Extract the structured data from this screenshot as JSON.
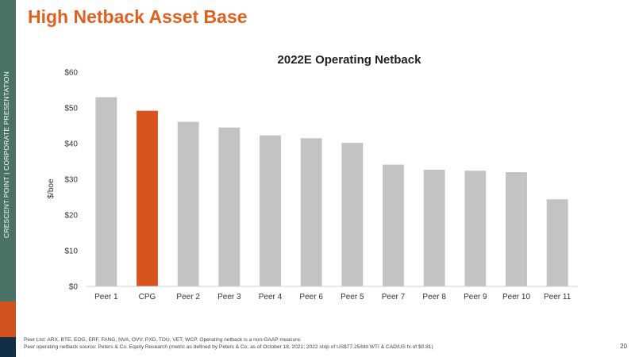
{
  "sidebar": {
    "text": "CRESCENT POINT  |  CORPORATE PRESENTATION",
    "colors": {
      "teal": "#4a7266",
      "orange": "#d2531f",
      "navy": "#0f2f45"
    }
  },
  "page": {
    "title": "High Netback Asset Base",
    "title_color": "#e0611e",
    "page_number": "20"
  },
  "footnotes": [
    "Peer List: ARX, BTE, EOG, ERF, FANG, NVA, OVV, PXD, TOU, VET, WCP. Operating netback is a non-GAAP measure.",
    "Peer operating netback source: Peters & Co. Equity Research (metric as defined by Peters & Co. as of October 18, 2021; 2022 strip of US$77.25/bbl WTI & CAD/US fx of $0.81)"
  ],
  "chart_data": {
    "type": "bar",
    "title": "2022E Operating Netback",
    "xlabel": "",
    "ylabel": "$/boe",
    "categories": [
      "Peer 1",
      "CPG",
      "Peer 2",
      "Peer 3",
      "Peer 4",
      "Peer 6",
      "Peer 5",
      "Peer 7",
      "Peer 8",
      "Peer 9",
      "Peer 10",
      "Peer 11"
    ],
    "values": [
      53,
      49.2,
      46.1,
      44.5,
      42.3,
      41.5,
      40.2,
      34.1,
      32.7,
      32.4,
      32.0,
      24.4
    ],
    "highlight_index": 1,
    "ylim": [
      0,
      60
    ],
    "yticks": [
      0,
      10,
      20,
      30,
      40,
      50,
      60
    ],
    "ytick_labels": [
      "$0",
      "$10",
      "$20",
      "$30",
      "$40",
      "$50",
      "$60"
    ],
    "grid": false,
    "colors": {
      "default": "#c3c3c3",
      "highlight": "#d9531e",
      "axis": "#d0d0d0"
    }
  }
}
